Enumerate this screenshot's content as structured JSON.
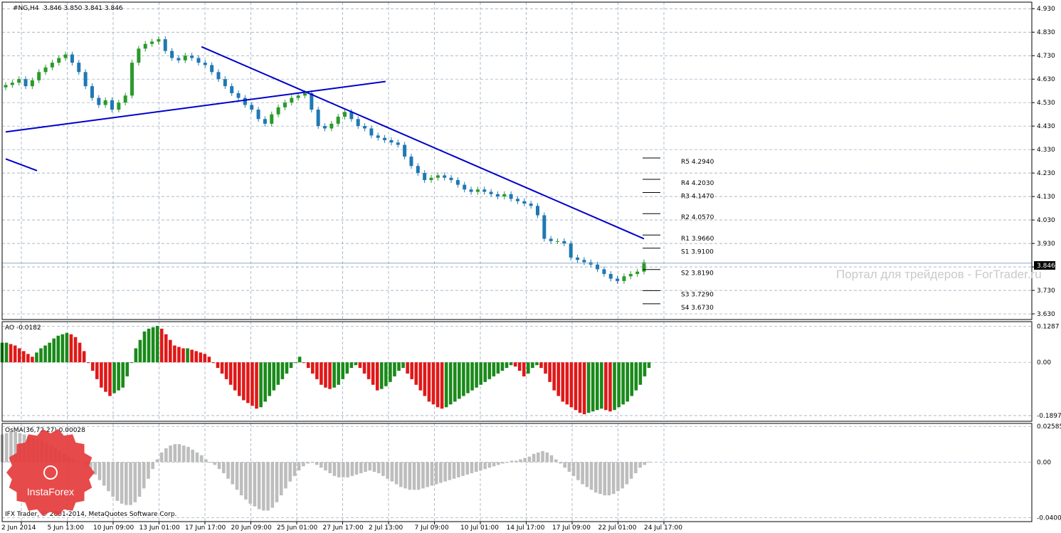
{
  "chart_data": {
    "type": "candlestick",
    "title": "#NG,H4",
    "ohlc_header": "3.846 3.850 3.841 3.846",
    "last_price": "3.846",
    "watermark": "Портал для трейдеров - ForTrader.ru",
    "copyright": "IFX Trader, © 2001-2014, MetaQuotes Software Corp.",
    "logo_text": "InstaForex",
    "colors": {
      "up": "#2a9a2a",
      "down": "#1f78b4",
      "trend": "#0000cc",
      "hist_red": "#e01818",
      "hist_green": "#1a8a1a",
      "osma": "#bdbdbd",
      "grid": "#8ca0b4"
    },
    "main_axis": {
      "ticks": [
        "4.930",
        "4.830",
        "4.730",
        "4.630",
        "4.530",
        "4.430",
        "4.330",
        "4.230",
        "4.130",
        "4.030",
        "3.930",
        "3.830",
        "3.730",
        "3.630"
      ],
      "ylim": [
        3.606,
        4.958
      ]
    },
    "x_ticks": [
      "2 Jun 2014",
      "5 Jun 13:00",
      "10 Jun 09:00",
      "13 Jun 01:00",
      "17 Jun 17:00",
      "20 Jun 09:00",
      "25 Jun 01:00",
      "27 Jun 17:00",
      "2 Jul 13:00",
      "7 Jul 09:00",
      "10 Jul 01:00",
      "14 Jul 17:00",
      "17 Jul 09:00",
      "22 Jul 01:00",
      "24 Jul 17:00"
    ],
    "price_close": [
      4.605,
      4.615,
      4.63,
      4.6,
      4.625,
      4.66,
      4.68,
      4.7,
      4.72,
      4.735,
      4.7,
      4.66,
      4.6,
      4.55,
      4.52,
      4.54,
      4.5,
      4.53,
      4.56,
      4.7,
      4.76,
      4.78,
      4.79,
      4.8,
      4.75,
      4.72,
      4.71,
      4.73,
      4.72,
      4.7,
      4.69,
      4.66,
      4.63,
      4.6,
      4.57,
      4.55,
      4.52,
      4.5,
      4.46,
      4.44,
      4.48,
      4.51,
      4.53,
      4.55,
      4.56,
      4.57,
      4.5,
      4.43,
      4.42,
      4.44,
      4.47,
      4.49,
      4.46,
      4.43,
      4.42,
      4.39,
      4.38,
      4.37,
      4.36,
      4.35,
      4.3,
      4.26,
      4.23,
      4.2,
      4.21,
      4.22,
      4.21,
      4.2,
      4.18,
      4.16,
      4.15,
      4.16,
      4.15,
      4.14,
      4.13,
      4.14,
      4.12,
      4.11,
      4.1,
      4.09,
      4.05,
      3.95,
      3.94,
      3.94,
      3.93,
      3.87,
      3.86,
      3.85,
      3.84,
      3.82,
      3.8,
      3.78,
      3.77,
      3.79,
      3.8,
      3.81,
      3.85
    ],
    "levels": [
      {
        "label": "R5 4.2940",
        "value": 4.294
      },
      {
        "label": "R4 4.2030",
        "value": 4.203
      },
      {
        "label": "R3 4.1470",
        "value": 4.147
      },
      {
        "label": "R2 4.0570",
        "value": 4.057
      },
      {
        "label": "R1 3.9660",
        "value": 3.966
      },
      {
        "label": "S1 3.9100",
        "value": 3.91
      },
      {
        "label": "S2 3.8190",
        "value": 3.819
      },
      {
        "label": "S3 3.7290",
        "value": 3.729
      },
      {
        "label": "S4 3.6730",
        "value": 3.673
      }
    ],
    "trendlines": [
      {
        "from": [
          0,
          4.405
        ],
        "to": [
          97,
          4.62
        ]
      },
      {
        "from": [
          0,
          4.29
        ],
        "to": [
          8,
          4.24
        ]
      },
      {
        "from": [
          50,
          4.768
        ],
        "to": [
          163,
          3.95
        ]
      }
    ],
    "ao": {
      "label": "AO -0.0182",
      "ticks": [
        "0.1287",
        "0.00",
        "-0.1897"
      ],
      "ylim": [
        -0.21,
        0.145
      ],
      "values": [
        0.07,
        0.07,
        0.065,
        0.06,
        0.05,
        0.04,
        0.03,
        0.02,
        0.035,
        0.05,
        0.06,
        0.07,
        0.085,
        0.095,
        0.1,
        0.105,
        0.1,
        0.09,
        0.07,
        0.04,
        0.0,
        -0.03,
        -0.06,
        -0.09,
        -0.105,
        -0.12,
        -0.11,
        -0.1,
        -0.09,
        -0.05,
        0.0,
        0.05,
        0.08,
        0.11,
        0.12,
        0.125,
        0.13,
        0.12,
        0.1,
        0.08,
        0.06,
        0.055,
        0.05,
        0.05,
        0.045,
        0.04,
        0.035,
        0.03,
        0.02,
        0.0,
        -0.02,
        -0.04,
        -0.06,
        -0.08,
        -0.1,
        -0.12,
        -0.135,
        -0.145,
        -0.155,
        -0.165,
        -0.16,
        -0.14,
        -0.12,
        -0.1,
        -0.08,
        -0.06,
        -0.04,
        -0.02,
        0.0,
        0.02,
        0.0,
        -0.02,
        -0.04,
        -0.06,
        -0.08,
        -0.09,
        -0.095,
        -0.09,
        -0.08,
        -0.06,
        -0.04,
        -0.02,
        -0.01,
        -0.02,
        -0.04,
        -0.06,
        -0.08,
        -0.1,
        -0.095,
        -0.085,
        -0.07,
        -0.05,
        -0.03,
        -0.02,
        -0.04,
        -0.06,
        -0.08,
        -0.1,
        -0.12,
        -0.14,
        -0.15,
        -0.16,
        -0.165,
        -0.16,
        -0.15,
        -0.14,
        -0.13,
        -0.12,
        -0.11,
        -0.1,
        -0.09,
        -0.08,
        -0.07,
        -0.06,
        -0.05,
        -0.04,
        -0.03,
        -0.02,
        -0.01,
        -0.015,
        -0.03,
        -0.05,
        -0.04,
        -0.02,
        -0.01,
        -0.02,
        -0.04,
        -0.07,
        -0.1,
        -0.12,
        -0.14,
        -0.15,
        -0.16,
        -0.17,
        -0.18,
        -0.185,
        -0.18,
        -0.175,
        -0.17,
        -0.165,
        -0.17,
        -0.175,
        -0.17,
        -0.16,
        -0.15,
        -0.14,
        -0.12,
        -0.1,
        -0.08,
        -0.05,
        -0.02
      ]
    },
    "osma": {
      "label": "OsMA(36,72,27) 0.00028",
      "ticks": [
        "0.02585",
        "0.00",
        "-0.04008"
      ],
      "ylim": [
        -0.043,
        0.028
      ],
      "values": [
        0.02,
        0.021,
        0.022,
        0.022,
        0.021,
        0.02,
        0.019,
        0.018,
        0.017,
        0.016,
        0.014,
        0.012,
        0.01,
        0.008,
        0.006,
        0.004,
        0.002,
        0.001,
        0.0,
        -0.002,
        -0.005,
        -0.009,
        -0.013,
        -0.017,
        -0.021,
        -0.025,
        -0.028,
        -0.03,
        -0.031,
        -0.031,
        -0.029,
        -0.025,
        -0.019,
        -0.012,
        -0.005,
        0.002,
        0.007,
        0.01,
        0.012,
        0.013,
        0.013,
        0.012,
        0.011,
        0.009,
        0.007,
        0.005,
        0.002,
        0.0,
        -0.002,
        -0.005,
        -0.008,
        -0.012,
        -0.016,
        -0.02,
        -0.024,
        -0.027,
        -0.03,
        -0.032,
        -0.034,
        -0.035,
        -0.035,
        -0.033,
        -0.029,
        -0.024,
        -0.019,
        -0.014,
        -0.01,
        -0.006,
        -0.003,
        -0.001,
        0.0,
        -0.002,
        -0.004,
        -0.006,
        -0.008,
        -0.01,
        -0.011,
        -0.011,
        -0.011,
        -0.01,
        -0.009,
        -0.008,
        -0.007,
        -0.006,
        -0.007,
        -0.008,
        -0.01,
        -0.012,
        -0.014,
        -0.016,
        -0.018,
        -0.019,
        -0.02,
        -0.02,
        -0.02,
        -0.019,
        -0.018,
        -0.017,
        -0.016,
        -0.015,
        -0.014,
        -0.013,
        -0.012,
        -0.011,
        -0.01,
        -0.009,
        -0.008,
        -0.007,
        -0.006,
        -0.005,
        -0.004,
        -0.003,
        -0.002,
        -0.001,
        0.0,
        0.001,
        0.001,
        0.002,
        0.003,
        0.004,
        0.006,
        0.007,
        0.008,
        0.007,
        0.005,
        0.002,
        -0.001,
        -0.004,
        -0.007,
        -0.01,
        -0.013,
        -0.016,
        -0.018,
        -0.02,
        -0.022,
        -0.023,
        -0.024,
        -0.024,
        -0.023,
        -0.021,
        -0.019,
        -0.016,
        -0.012,
        -0.008,
        -0.004,
        -0.002,
        0.0003
      ]
    }
  }
}
